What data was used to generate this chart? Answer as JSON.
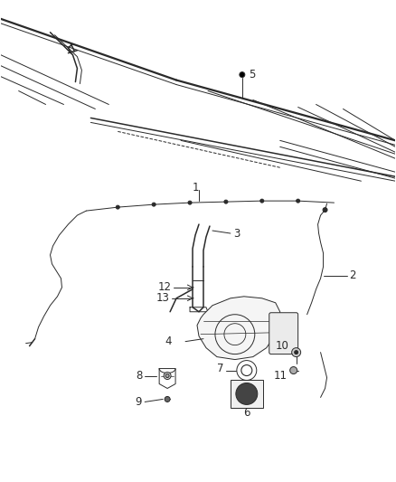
{
  "bg_color": "#ffffff",
  "line_color": "#2a2a2a",
  "label_color": "#2a2a2a",
  "font_size": 8.5,
  "figsize": [
    4.38,
    5.33
  ],
  "dpi": 100
}
